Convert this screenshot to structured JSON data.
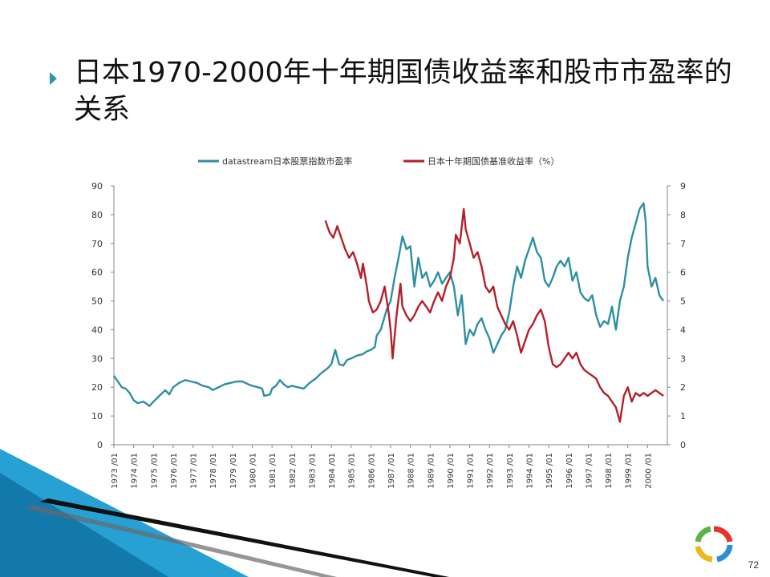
{
  "slide": {
    "title": "日本1970-2000年十年期国债收益率和股市市盈率的关系",
    "page_number": "72"
  },
  "colors": {
    "pe_series": "#2e8fa3",
    "yield_series": "#b3202a",
    "bullet": "#2e93ad",
    "swoosh_blue": "#1b9bd1",
    "swoosh_black": "#111111"
  },
  "icons": {
    "bullet": "triangle-bullet-icon",
    "logo": "ring-logo-icon"
  },
  "chart_data": {
    "type": "line",
    "legend_position": "top",
    "grid": false,
    "x_labels": [
      "1973 /01",
      "1974 /01",
      "1975 /01",
      "1976 /01",
      "1977 /01",
      "1978 /01",
      "1979 /01",
      "1980 /01",
      "1981 /01",
      "1982 /01",
      "1983 /01",
      "1984 /01",
      "1985 /01",
      "1986 /01",
      "1987 /01",
      "1988 /01",
      "1989 /01",
      "1990 /01",
      "1991 /01",
      "1992 /01",
      "1993 /01",
      "1994 /01",
      "1995 /01",
      "1996 /01",
      "1997 /01",
      "1998 /01",
      "1999 /01",
      "2000 /01"
    ],
    "x_range": [
      1973.0,
      2001.0
    ],
    "y_left": {
      "range": [
        0,
        90
      ],
      "ticks": [
        0,
        10,
        20,
        30,
        40,
        50,
        60,
        70,
        80,
        90
      ]
    },
    "y_right": {
      "range": [
        0,
        9
      ],
      "ticks": [
        0,
        1,
        2,
        3,
        4,
        5,
        6,
        7,
        8,
        9
      ]
    },
    "series": [
      {
        "name": "datastream日本股票指数市盈率",
        "axis": "left",
        "points": [
          [
            1973.0,
            24
          ],
          [
            1973.2,
            22
          ],
          [
            1973.4,
            20
          ],
          [
            1973.6,
            19.5
          ],
          [
            1973.8,
            18
          ],
          [
            1974.0,
            15.5
          ],
          [
            1974.2,
            14.5
          ],
          [
            1974.5,
            15
          ],
          [
            1974.8,
            13.5
          ],
          [
            1975.0,
            15
          ],
          [
            1975.3,
            17
          ],
          [
            1975.6,
            19
          ],
          [
            1975.8,
            17.5
          ],
          [
            1976.0,
            20
          ],
          [
            1976.3,
            21.5
          ],
          [
            1976.6,
            22.5
          ],
          [
            1976.9,
            22
          ],
          [
            1977.2,
            21.5
          ],
          [
            1977.5,
            20.5
          ],
          [
            1977.8,
            20
          ],
          [
            1978.0,
            19
          ],
          [
            1978.3,
            20
          ],
          [
            1978.6,
            21
          ],
          [
            1978.9,
            21.5
          ],
          [
            1979.2,
            22
          ],
          [
            1979.5,
            22
          ],
          [
            1979.8,
            21
          ],
          [
            1980.0,
            20.5
          ],
          [
            1980.3,
            20
          ],
          [
            1980.5,
            19.5
          ],
          [
            1980.6,
            17
          ],
          [
            1980.9,
            17.5
          ],
          [
            1981.0,
            19.5
          ],
          [
            1981.2,
            20.5
          ],
          [
            1981.4,
            22.5
          ],
          [
            1981.6,
            21
          ],
          [
            1981.8,
            20
          ],
          [
            1982.0,
            20.5
          ],
          [
            1982.3,
            20
          ],
          [
            1982.6,
            19.5
          ],
          [
            1982.9,
            21.5
          ],
          [
            1983.2,
            23
          ],
          [
            1983.5,
            25
          ],
          [
            1983.8,
            26.5
          ],
          [
            1984.0,
            28
          ],
          [
            1984.2,
            33
          ],
          [
            1984.4,
            28
          ],
          [
            1984.6,
            27.5
          ],
          [
            1984.8,
            29.5
          ],
          [
            1985.0,
            30
          ],
          [
            1985.3,
            31
          ],
          [
            1985.6,
            31.5
          ],
          [
            1985.8,
            32.5
          ],
          [
            1986.0,
            33
          ],
          [
            1986.2,
            34
          ],
          [
            1986.3,
            38
          ],
          [
            1986.5,
            40
          ],
          [
            1986.8,
            47
          ],
          [
            1987.0,
            50
          ],
          [
            1987.2,
            58
          ],
          [
            1987.4,
            65
          ],
          [
            1987.6,
            72.5
          ],
          [
            1987.8,
            68
          ],
          [
            1988.0,
            69
          ],
          [
            1988.2,
            55
          ],
          [
            1988.4,
            65
          ],
          [
            1988.6,
            58
          ],
          [
            1988.8,
            60
          ],
          [
            1989.0,
            55
          ],
          [
            1989.2,
            57
          ],
          [
            1989.4,
            60
          ],
          [
            1989.6,
            56
          ],
          [
            1989.8,
            58
          ],
          [
            1990.0,
            60
          ],
          [
            1990.2,
            55
          ],
          [
            1990.4,
            45
          ],
          [
            1990.6,
            52
          ],
          [
            1990.8,
            35
          ],
          [
            1991.0,
            40
          ],
          [
            1991.2,
            38
          ],
          [
            1991.4,
            42
          ],
          [
            1991.6,
            44
          ],
          [
            1991.8,
            40
          ],
          [
            1992.0,
            37
          ],
          [
            1992.2,
            32
          ],
          [
            1992.4,
            35
          ],
          [
            1992.6,
            38
          ],
          [
            1992.8,
            40
          ],
          [
            1993.0,
            46
          ],
          [
            1993.2,
            55
          ],
          [
            1993.4,
            62
          ],
          [
            1993.6,
            58
          ],
          [
            1993.8,
            64
          ],
          [
            1994.0,
            68
          ],
          [
            1994.2,
            72
          ],
          [
            1994.4,
            67
          ],
          [
            1994.6,
            65
          ],
          [
            1994.8,
            57
          ],
          [
            1995.0,
            55
          ],
          [
            1995.2,
            58
          ],
          [
            1995.4,
            62
          ],
          [
            1995.6,
            64
          ],
          [
            1995.8,
            62
          ],
          [
            1996.0,
            65
          ],
          [
            1996.2,
            57
          ],
          [
            1996.4,
            60
          ],
          [
            1996.6,
            53
          ],
          [
            1996.8,
            51
          ],
          [
            1997.0,
            50
          ],
          [
            1997.2,
            52
          ],
          [
            1997.4,
            45
          ],
          [
            1997.6,
            41
          ],
          [
            1997.8,
            43
          ],
          [
            1998.0,
            42
          ],
          [
            1998.2,
            48
          ],
          [
            1998.4,
            40
          ],
          [
            1998.6,
            50
          ],
          [
            1998.8,
            55
          ],
          [
            1999.0,
            65
          ],
          [
            1999.2,
            72
          ],
          [
            1999.4,
            77
          ],
          [
            1999.6,
            82
          ],
          [
            1999.8,
            84
          ],
          [
            1999.9,
            78
          ],
          [
            2000.0,
            62
          ],
          [
            2000.2,
            55
          ],
          [
            2000.4,
            58
          ],
          [
            2000.6,
            52
          ],
          [
            2000.8,
            50
          ]
        ]
      },
      {
        "name": "日本十年期国债基准收益率（%）",
        "axis": "right",
        "points": [
          [
            1983.7,
            7.8
          ],
          [
            1983.9,
            7.4
          ],
          [
            1984.1,
            7.2
          ],
          [
            1984.3,
            7.6
          ],
          [
            1984.5,
            7.2
          ],
          [
            1984.7,
            6.8
          ],
          [
            1984.9,
            6.5
          ],
          [
            1985.1,
            6.7
          ],
          [
            1985.3,
            6.3
          ],
          [
            1985.5,
            5.8
          ],
          [
            1985.6,
            6.3
          ],
          [
            1985.8,
            5.5
          ],
          [
            1985.9,
            5.0
          ],
          [
            1986.1,
            4.6
          ],
          [
            1986.3,
            4.7
          ],
          [
            1986.5,
            5.0
          ],
          [
            1986.7,
            5.5
          ],
          [
            1986.9,
            4.6
          ],
          [
            1987.0,
            4.0
          ],
          [
            1987.1,
            3.0
          ],
          [
            1987.3,
            4.5
          ],
          [
            1987.5,
            5.6
          ],
          [
            1987.6,
            4.8
          ],
          [
            1987.8,
            4.5
          ],
          [
            1988.0,
            4.3
          ],
          [
            1988.2,
            4.5
          ],
          [
            1988.4,
            4.8
          ],
          [
            1988.6,
            5.0
          ],
          [
            1988.8,
            4.8
          ],
          [
            1989.0,
            4.6
          ],
          [
            1989.2,
            5.0
          ],
          [
            1989.4,
            5.3
          ],
          [
            1989.6,
            5.0
          ],
          [
            1989.8,
            5.5
          ],
          [
            1990.0,
            5.8
          ],
          [
            1990.2,
            6.5
          ],
          [
            1990.3,
            7.3
          ],
          [
            1990.5,
            7.0
          ],
          [
            1990.7,
            8.2
          ],
          [
            1990.8,
            7.5
          ],
          [
            1991.0,
            7.0
          ],
          [
            1991.2,
            6.5
          ],
          [
            1991.4,
            6.7
          ],
          [
            1991.6,
            6.2
          ],
          [
            1991.8,
            5.5
          ],
          [
            1992.0,
            5.3
          ],
          [
            1992.2,
            5.5
          ],
          [
            1992.4,
            4.8
          ],
          [
            1992.6,
            4.5
          ],
          [
            1992.8,
            4.2
          ],
          [
            1993.0,
            4.0
          ],
          [
            1993.2,
            4.3
          ],
          [
            1993.4,
            3.8
          ],
          [
            1993.6,
            3.2
          ],
          [
            1993.8,
            3.6
          ],
          [
            1994.0,
            4.0
          ],
          [
            1994.2,
            4.2
          ],
          [
            1994.4,
            4.5
          ],
          [
            1994.6,
            4.7
          ],
          [
            1994.8,
            4.3
          ],
          [
            1995.0,
            3.4
          ],
          [
            1995.2,
            2.8
          ],
          [
            1995.4,
            2.7
          ],
          [
            1995.6,
            2.8
          ],
          [
            1995.8,
            3.0
          ],
          [
            1996.0,
            3.2
          ],
          [
            1996.2,
            3.0
          ],
          [
            1996.4,
            3.2
          ],
          [
            1996.6,
            2.8
          ],
          [
            1996.8,
            2.6
          ],
          [
            1997.0,
            2.5
          ],
          [
            1997.2,
            2.4
          ],
          [
            1997.4,
            2.3
          ],
          [
            1997.6,
            2.0
          ],
          [
            1997.8,
            1.8
          ],
          [
            1998.0,
            1.7
          ],
          [
            1998.2,
            1.5
          ],
          [
            1998.4,
            1.3
          ],
          [
            1998.6,
            0.8
          ],
          [
            1998.8,
            1.7
          ],
          [
            1999.0,
            2.0
          ],
          [
            1999.2,
            1.5
          ],
          [
            1999.4,
            1.8
          ],
          [
            1999.6,
            1.7
          ],
          [
            1999.8,
            1.8
          ],
          [
            2000.0,
            1.7
          ],
          [
            2000.2,
            1.8
          ],
          [
            2000.4,
            1.9
          ],
          [
            2000.6,
            1.8
          ],
          [
            2000.8,
            1.7
          ]
        ]
      }
    ]
  }
}
